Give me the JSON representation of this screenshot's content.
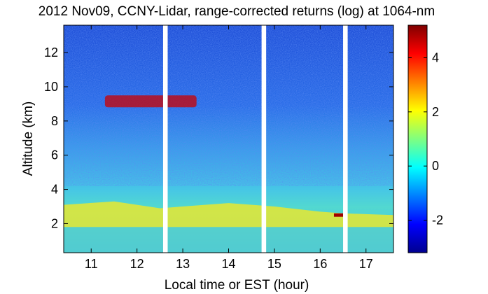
{
  "chart_data": {
    "type": "heatmap",
    "title": "2012 Nov09, CCNY-Lidar, range-corrected returns (log) at 1064-nm",
    "xlabel": "Local time or EST (hour)",
    "ylabel": "Altitude (km)",
    "xlim": [
      10.4,
      17.6
    ],
    "ylim": [
      0.3,
      13.6
    ],
    "x_ticks": [
      11,
      12,
      13,
      14,
      15,
      16,
      17
    ],
    "y_ticks": [
      2,
      4,
      6,
      8,
      10,
      12
    ],
    "colorbar": {
      "range": [
        -3.2,
        5.2
      ],
      "ticks": [
        -2,
        0,
        2,
        4
      ],
      "colormap": "jet"
    },
    "data_gaps_hours": [
      [
        12.57,
        12.67
      ],
      [
        14.72,
        14.82
      ],
      [
        16.5,
        16.6
      ]
    ],
    "features": {
      "cirrus_cloud": {
        "x": [
          11.3,
          13.3
        ],
        "altitude_km": [
          8.8,
          9.5
        ],
        "log_value": 4.5
      },
      "aerosol_layer_top_km": [
        3.1,
        3.3,
        2.9,
        3.2,
        3.0,
        2.7,
        2.6,
        2.5
      ],
      "aerosol_layer_time_h": [
        10.4,
        11.5,
        12.5,
        14.0,
        15.0,
        16.0,
        16.5,
        17.6
      ],
      "low_cloud": {
        "x": [
          16.3,
          16.5
        ],
        "altitude_km": [
          2.4,
          2.6
        ],
        "log_value": 5.0
      }
    }
  },
  "colors": {
    "cirrus": "#cc0000",
    "boundary_layer": "#e8e830",
    "background_high": "#2a5bd0",
    "background_low": "#40c0e0"
  }
}
